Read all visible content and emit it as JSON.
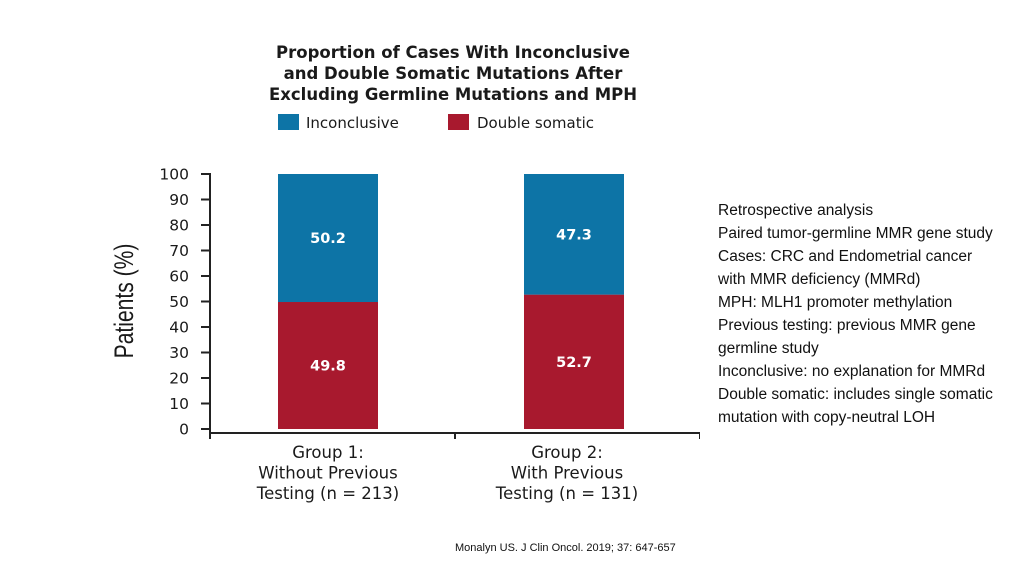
{
  "chart_data": {
    "type": "bar",
    "stacked": true,
    "title_lines": [
      "Proportion of Cases With Inconclusive",
      "and Double Somatic Mutations After",
      "Excluding Germline Mutations and MPH"
    ],
    "ylabel": "Patients (%)",
    "ylim": [
      0,
      100
    ],
    "yticks": [
      "0",
      "10",
      "20",
      "30",
      "40",
      "50",
      "60",
      "70",
      "80",
      "90",
      "100"
    ],
    "legend_position": "top",
    "categories": [
      [
        "Group 1:",
        "Without Previous",
        "Testing (n = 213)"
      ],
      [
        "Group 2:",
        "With Previous",
        "Testing (n = 131)"
      ]
    ],
    "series": [
      {
        "name": "Double somatic",
        "color": "#a8192e",
        "values": [
          49.8,
          52.7
        ],
        "labels": [
          "49.8",
          "52.7"
        ]
      },
      {
        "name": "Inconclusive",
        "color": "#0d74a6",
        "values": [
          50.2,
          47.3
        ],
        "labels": [
          "50.2",
          "47.3"
        ]
      }
    ],
    "legend_order": [
      1,
      0
    ]
  },
  "notes": [
    "Retrospective analysis",
    "Paired tumor-germline MMR gene study",
    "Cases: CRC and Endometrial cancer",
    "with MMR deficiency (MMRd)",
    "MPH: MLH1 promoter methylation",
    "Previous testing: previous MMR gene",
    "germline study",
    "Inconclusive: no explanation for MMRd",
    "Double somatic: includes single somatic",
    "mutation with copy-neutral LOH"
  ],
  "citation": "Monalyn US. J Clin Oncol. 2019; 37: 647-657"
}
